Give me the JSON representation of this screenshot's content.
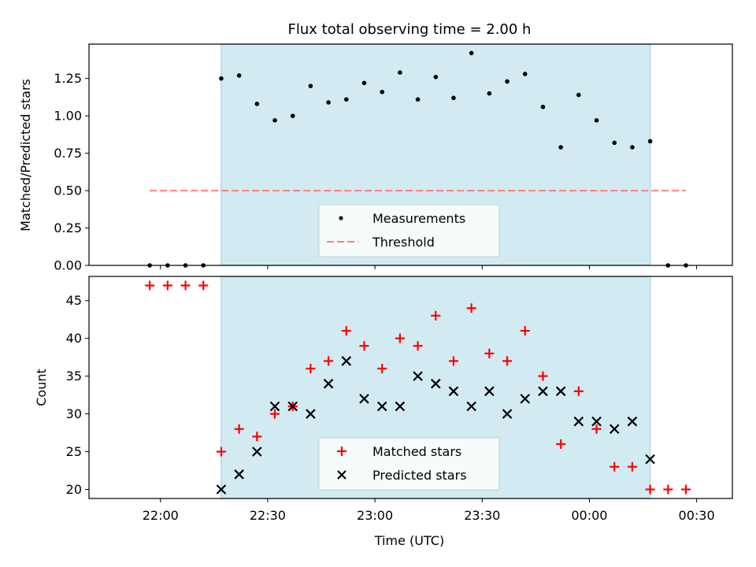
{
  "title": "Flux total observing time = 2.00 h",
  "colors": {
    "shade": "#add8e6",
    "measurement": "#000000",
    "threshold": "#ff8080",
    "matched": "#ff0000",
    "predicted": "#000000"
  },
  "chart_data": [
    {
      "type": "scatter",
      "ylabel": "Matched/Predicted stars",
      "ylim": [
        0,
        1.48
      ],
      "yticks": [
        "0.00",
        "0.25",
        "0.50",
        "0.75",
        "1.00",
        "1.25"
      ],
      "shaded_interval": {
        "start": "22:17",
        "end": "00:17"
      },
      "threshold": {
        "value": 0.5,
        "from": "21:57",
        "to": "00:27"
      },
      "legend": {
        "position": "bottom-center",
        "entries": [
          "Measurements",
          "Threshold"
        ]
      },
      "series": [
        {
          "name": "Measurements",
          "x": [
            "21:57",
            "22:02",
            "22:07",
            "22:12",
            "22:17",
            "22:22",
            "22:27",
            "22:32",
            "22:37",
            "22:42",
            "22:47",
            "22:52",
            "22:57",
            "23:02",
            "23:07",
            "23:12",
            "23:17",
            "23:22",
            "23:27",
            "23:32",
            "23:37",
            "23:42",
            "23:47",
            "23:52",
            "23:57",
            "00:02",
            "00:07",
            "00:12",
            "00:17",
            "00:22",
            "00:27"
          ],
          "values": [
            0,
            0,
            0,
            0,
            1.25,
            1.27,
            1.08,
            0.97,
            1.0,
            1.2,
            1.09,
            1.11,
            1.22,
            1.16,
            1.29,
            1.11,
            1.26,
            1.12,
            1.42,
            1.15,
            1.23,
            1.28,
            1.06,
            0.79,
            1.14,
            0.97,
            0.82,
            0.79,
            0.83,
            0,
            0
          ]
        }
      ]
    },
    {
      "type": "scatter",
      "xlabel": "Time (UTC)",
      "ylabel": "Count",
      "ylim": [
        18.8,
        48.2
      ],
      "yticks": [
        "20",
        "25",
        "30",
        "35",
        "40",
        "45"
      ],
      "xticks": [
        "22:00",
        "22:30",
        "23:00",
        "23:30",
        "00:00",
        "00:30"
      ],
      "legend": {
        "position": "bottom-center",
        "entries": [
          "Matched stars",
          "Predicted stars"
        ]
      },
      "series": [
        {
          "name": "Matched stars",
          "x": [
            "21:57",
            "22:02",
            "22:07",
            "22:12",
            "22:17",
            "22:22",
            "22:27",
            "22:32",
            "22:37",
            "22:42",
            "22:47",
            "22:52",
            "22:57",
            "23:02",
            "23:07",
            "23:12",
            "23:17",
            "23:22",
            "23:27",
            "23:32",
            "23:37",
            "23:42",
            "23:47",
            "23:52",
            "23:57",
            "00:02",
            "00:07",
            "00:12",
            "00:17",
            "00:22",
            "00:27"
          ],
          "values": [
            47,
            47,
            47,
            47,
            25,
            28,
            27,
            30,
            31,
            36,
            37,
            41,
            39,
            36,
            40,
            39,
            43,
            37,
            44,
            38,
            37,
            41,
            35,
            26,
            33,
            28,
            23,
            23,
            20,
            20,
            20
          ]
        },
        {
          "name": "Predicted stars",
          "x": [
            "22:17",
            "22:22",
            "22:27",
            "22:32",
            "22:37",
            "22:42",
            "22:47",
            "22:52",
            "22:57",
            "23:02",
            "23:07",
            "23:12",
            "23:17",
            "23:22",
            "23:27",
            "23:32",
            "23:37",
            "23:42",
            "23:47",
            "23:52",
            "23:57",
            "00:02",
            "00:07",
            "00:12",
            "00:17"
          ],
          "values": [
            20,
            22,
            25,
            31,
            31,
            30,
            34,
            37,
            32,
            31,
            31,
            35,
            34,
            33,
            31,
            33,
            30,
            32,
            33,
            33,
            29,
            29,
            28,
            29,
            24
          ]
        }
      ]
    }
  ]
}
